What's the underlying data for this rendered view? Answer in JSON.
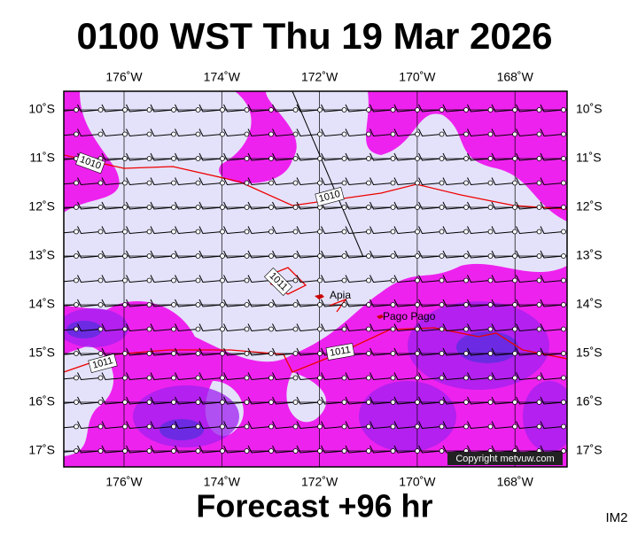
{
  "title": "0100 WST Thu 19 Mar 2026",
  "footer": "Forecast +96 hr",
  "image_id": "IM2",
  "copyright": "Copyright metvuw.com",
  "longitude_labels": [
    "176˚W",
    "174˚W",
    "172˚W",
    "170˚W",
    "168˚W"
  ],
  "latitude_labels": [
    "10˚S",
    "11˚S",
    "12˚S",
    "13˚S",
    "14˚S",
    "15˚S",
    "16˚S",
    "17˚S"
  ],
  "places": [
    {
      "label": "Apia"
    },
    {
      "label": "Pago Pago"
    }
  ],
  "isobar_labels": [
    "1010",
    "1010",
    "1011",
    "1011",
    "1011"
  ]
}
